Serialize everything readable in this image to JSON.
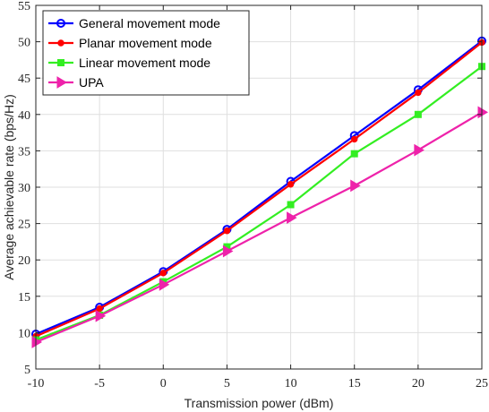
{
  "chart_data": {
    "type": "line",
    "title": "",
    "xlabel": "Transmission power (dBm)",
    "ylabel": "Average achievable rate (bps/Hz)",
    "x": [
      -10,
      -5,
      0,
      5,
      10,
      15,
      20,
      25
    ],
    "xlim": [
      -10,
      25
    ],
    "ylim": [
      5,
      55
    ],
    "xticks": [
      -10,
      -5,
      0,
      5,
      10,
      15,
      20,
      25
    ],
    "yticks": [
      5,
      10,
      15,
      20,
      25,
      30,
      35,
      40,
      45,
      50,
      55
    ],
    "grid": true,
    "legend_position": "top-left",
    "series": [
      {
        "name": "General movement mode",
        "color": "#0000ff",
        "marker": "circle",
        "values": [
          9.8,
          13.5,
          18.4,
          24.2,
          30.8,
          37.1,
          43.4,
          50.1
        ]
      },
      {
        "name": "Planar movement mode",
        "color": "#ff0000",
        "marker": "dot",
        "values": [
          9.5,
          13.3,
          18.2,
          24.0,
          30.4,
          36.6,
          43.0,
          49.9
        ]
      },
      {
        "name": "Linear movement mode",
        "color": "#33ee22",
        "marker": "square",
        "values": [
          9.0,
          12.4,
          17.0,
          21.8,
          27.6,
          34.6,
          40.0,
          46.6
        ]
      },
      {
        "name": "UPA",
        "color": "#ee22aa",
        "marker": "triangle-right",
        "values": [
          8.7,
          12.3,
          16.6,
          21.2,
          25.8,
          30.2,
          35.1,
          40.3
        ]
      }
    ]
  }
}
